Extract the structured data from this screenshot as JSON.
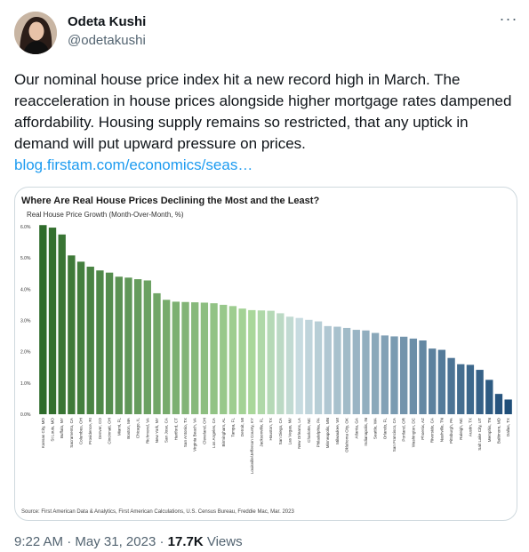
{
  "author": {
    "name": "Odeta Kushi",
    "handle": "@odetakushi"
  },
  "menu": {
    "more_icon": "more-horizontal-icon",
    "glyph": "···"
  },
  "tweet": {
    "text": "Our nominal house price index hit a new record high in March. The reacceleration in house prices alongside higher mortgage rates dampened affordability. Housing supply remains so restricted, that any uptick in demand will put upward pressure on prices.",
    "link": "blog.firstam.com/economics/seas…"
  },
  "meta": {
    "time": "9:22 AM",
    "separator": "·",
    "date": "May 31, 2023",
    "views_count": "17.7K",
    "views_label": "Views"
  },
  "colors": {
    "link": "#1d9bf0",
    "secondary": "#536471",
    "bar_dark_green": "#2e6b2a",
    "bar_light_green": "#a9d79a",
    "bar_dark_blue": "#1f4e79"
  },
  "chart_data": {
    "type": "bar",
    "title": "Where Are Real House Prices Declining the Most and the Least?",
    "subtitle": "Real House Price Growth (Month-Over-Month, %)",
    "source": "Source: First American Data & Analytics, First American Calculations, U.S. Census Bureau, Freddie Mac, Mar. 2023",
    "ylim": [
      0,
      6
    ],
    "yticks": [
      "0.0%",
      "1.0%",
      "2.0%",
      "3.0%",
      "4.0%",
      "5.0%",
      "6.0%"
    ],
    "grid": false,
    "categories": [
      "Kansas City, MO",
      "St Louis, MO",
      "Buffalo, NY",
      "Sacramento, CA",
      "Columbus, OH",
      "Providence, RI",
      "Denver, CO",
      "Cincinnati, OH",
      "Miami, FL",
      "Boston, MA",
      "Chicago, IL",
      "Richmond, VA",
      "New York, NY",
      "San Jose, CA",
      "Hartford, CT",
      "San Antonio, TX",
      "Virginia Beach, VA",
      "Cleveland, OH",
      "Los Angeles, CA",
      "Birmingham, AL",
      "Tampa, FL",
      "Detroit, MI",
      "Louisville/Jefferson County, KY",
      "Jacksonville, FL",
      "Houston, TX",
      "San Diego, CA",
      "Las Vegas, NV",
      "New Orleans, LA",
      "Charlotte, NC",
      "Philadelphia, PA",
      "Minneapolis, MN",
      "Milwaukee, WI",
      "Oklahoma City, OK",
      "Atlanta, GA",
      "Indianapolis, IN",
      "Seattle, WA",
      "Orlando, FL",
      "San Francisco, CA",
      "Portland, OR",
      "Washington, DC",
      "Phoenix, AZ",
      "Riverside, CA",
      "Nashville, TN",
      "Pittsburgh, PA",
      "Raleigh, NC",
      "Austin, TX",
      "Salt Lake City, UT",
      "Memphis, TN",
      "Baltimore, MD",
      "Dallas, TX"
    ],
    "values": [
      6.05,
      5.97,
      5.75,
      5.08,
      4.88,
      4.72,
      4.6,
      4.53,
      4.4,
      4.37,
      4.32,
      4.28,
      3.87,
      3.66,
      3.6,
      3.59,
      3.58,
      3.57,
      3.55,
      3.5,
      3.46,
      3.38,
      3.33,
      3.32,
      3.31,
      3.23,
      3.12,
      3.08,
      3.02,
      2.97,
      2.82,
      2.8,
      2.76,
      2.7,
      2.68,
      2.6,
      2.52,
      2.49,
      2.48,
      2.42,
      2.36,
      2.1,
      2.06,
      1.8,
      1.6,
      1.58,
      1.42,
      1.1,
      0.65,
      0.47
    ]
  }
}
